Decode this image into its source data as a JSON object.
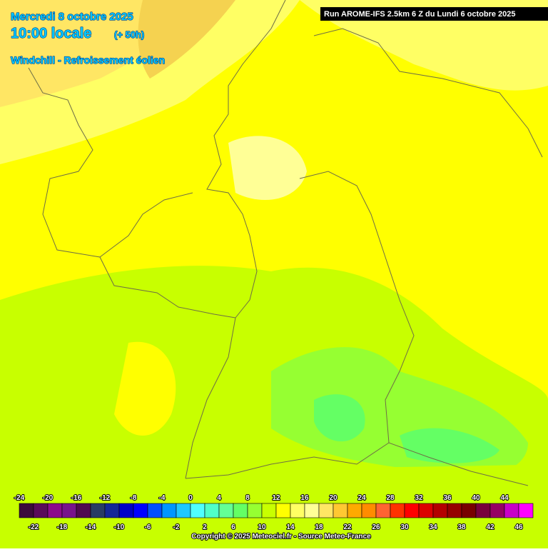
{
  "header": {
    "date": "Mercredi 8 octobre 2025",
    "time": "10:00 locale",
    "lead": "(+ 50h)",
    "product": "Windchill - Refroissement éolien"
  },
  "run": "Run AROME-IFS 2.5km 6 Z du Lundi 6 octobre 2025",
  "legend": {
    "values": [
      -24,
      -22,
      -20,
      -18,
      -16,
      -14,
      -12,
      -10,
      -8,
      -6,
      -4,
      -2,
      0,
      2,
      4,
      6,
      8,
      10,
      12,
      14,
      16,
      18,
      20,
      22,
      24,
      26,
      28,
      30,
      32,
      34,
      36,
      38,
      40,
      42,
      44,
      46
    ],
    "colors": [
      "#3c0a3c",
      "#5a0a5a",
      "#8c0a8c",
      "#78148c",
      "#500a50",
      "#283c64",
      "#142896",
      "#0000c8",
      "#0000ff",
      "#0050ff",
      "#0096ff",
      "#1ec8ff",
      "#50ffff",
      "#50ffc8",
      "#64ff96",
      "#64ff64",
      "#96ff32",
      "#c8ff00",
      "#ffff00",
      "#ffff64",
      "#ffff96",
      "#ffe664",
      "#ffc832",
      "#ffaa00",
      "#ff8c00",
      "#ff6432",
      "#ff3200",
      "#ff0000",
      "#dc0000",
      "#b40000",
      "#960000",
      "#780000",
      "#78003c",
      "#960064",
      "#c800c8",
      "#ff00ff"
    ]
  },
  "copyright": "Copyright © 2025 Meteociel.fr - Source Meteo-France"
}
